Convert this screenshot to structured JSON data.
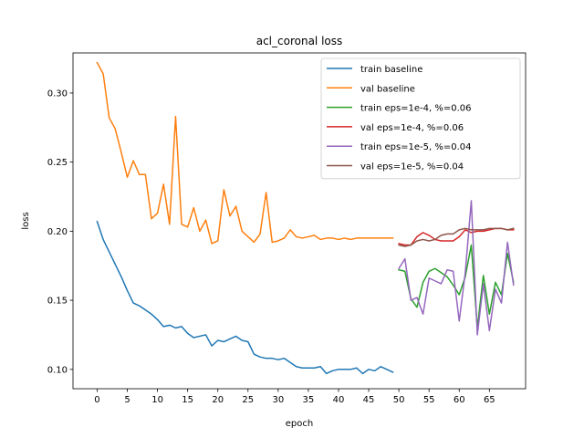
{
  "chart_data": {
    "type": "line",
    "title": "acl_coronal loss",
    "xlabel": "epoch",
    "ylabel": "loss",
    "xlim": [
      -4,
      71
    ],
    "ylim": [
      0.086,
      0.329
    ],
    "xticks": [
      0,
      5,
      10,
      15,
      20,
      25,
      30,
      35,
      40,
      45,
      50,
      55,
      60,
      65
    ],
    "yticks": [
      0.1,
      0.15,
      0.2,
      0.25,
      0.3
    ],
    "ytick_labels": [
      "0.10",
      "0.15",
      "0.20",
      "0.25",
      "0.30"
    ],
    "grid": false,
    "legend_position": "top-right",
    "series": [
      {
        "name": "train baseline",
        "color": "#1f77b4",
        "x": [
          0,
          1,
          2,
          3,
          4,
          5,
          6,
          7,
          8,
          9,
          10,
          11,
          12,
          13,
          14,
          15,
          16,
          17,
          18,
          19,
          20,
          21,
          22,
          23,
          24,
          25,
          26,
          27,
          28,
          29,
          30,
          31,
          32,
          33,
          34,
          35,
          36,
          37,
          38,
          39,
          40,
          41,
          42,
          43,
          44,
          45,
          46,
          47,
          48,
          49
        ],
        "y": [
          0.207,
          0.194,
          0.185,
          0.176,
          0.167,
          0.157,
          0.148,
          0.146,
          0.143,
          0.14,
          0.136,
          0.131,
          0.132,
          0.13,
          0.131,
          0.126,
          0.123,
          0.124,
          0.125,
          0.117,
          0.121,
          0.12,
          0.122,
          0.124,
          0.121,
          0.12,
          0.111,
          0.109,
          0.108,
          0.108,
          0.107,
          0.108,
          0.105,
          0.102,
          0.101,
          0.101,
          0.101,
          0.102,
          0.097,
          0.099,
          0.1,
          0.1,
          0.1,
          0.101,
          0.097,
          0.1,
          0.099,
          0.102,
          0.1,
          0.098
        ]
      },
      {
        "name": "val baseline",
        "color": "#ff7f0e",
        "x": [
          0,
          1,
          2,
          3,
          4,
          5,
          6,
          7,
          8,
          9,
          10,
          11,
          12,
          13,
          14,
          15,
          16,
          17,
          18,
          19,
          20,
          21,
          22,
          23,
          24,
          25,
          26,
          27,
          28,
          29,
          30,
          31,
          32,
          33,
          34,
          35,
          36,
          37,
          38,
          39,
          40,
          41,
          42,
          43,
          44,
          45,
          46,
          47,
          48,
          49
        ],
        "y": [
          0.322,
          0.314,
          0.282,
          0.274,
          0.257,
          0.239,
          0.251,
          0.241,
          0.241,
          0.209,
          0.213,
          0.234,
          0.205,
          0.283,
          0.205,
          0.203,
          0.217,
          0.2,
          0.208,
          0.191,
          0.193,
          0.23,
          0.211,
          0.218,
          0.2,
          0.196,
          0.192,
          0.198,
          0.228,
          0.192,
          0.193,
          0.195,
          0.201,
          0.196,
          0.195,
          0.196,
          0.197,
          0.194,
          0.195,
          0.195,
          0.194,
          0.195,
          0.194,
          0.195,
          0.195,
          0.195,
          0.195,
          0.195,
          0.195,
          0.195
        ]
      },
      {
        "name": "train eps=1e-4, %=0.06",
        "color": "#2ca02c",
        "x": [
          50,
          51,
          52,
          53,
          54,
          55,
          56,
          57,
          58,
          59,
          60,
          61,
          62,
          63,
          64,
          65,
          66,
          67,
          68,
          69
        ],
        "y": [
          0.172,
          0.171,
          0.151,
          0.145,
          0.163,
          0.171,
          0.173,
          0.17,
          0.167,
          0.161,
          0.154,
          0.167,
          0.19,
          0.13,
          0.168,
          0.14,
          0.163,
          0.154,
          0.184,
          0.163
        ]
      },
      {
        "name": "val eps=1e-4, %=0.06",
        "color": "#d62728",
        "x": [
          50,
          51,
          52,
          53,
          54,
          55,
          56,
          57,
          58,
          59,
          60,
          61,
          62,
          63,
          64,
          65,
          66,
          67,
          68,
          69
        ],
        "y": [
          0.191,
          0.19,
          0.19,
          0.196,
          0.199,
          0.197,
          0.194,
          0.193,
          0.193,
          0.193,
          0.196,
          0.201,
          0.199,
          0.2,
          0.2,
          0.201,
          0.202,
          0.202,
          0.201,
          0.201
        ]
      },
      {
        "name": "train eps=1e-5, %=0.04",
        "color": "#9467bd",
        "x": [
          50,
          51,
          52,
          53,
          54,
          55,
          56,
          57,
          58,
          59,
          60,
          61,
          62,
          63,
          64,
          65,
          66,
          67,
          68,
          69
        ],
        "y": [
          0.173,
          0.18,
          0.15,
          0.152,
          0.14,
          0.166,
          0.164,
          0.162,
          0.172,
          0.171,
          0.135,
          0.17,
          0.222,
          0.125,
          0.162,
          0.128,
          0.158,
          0.148,
          0.192,
          0.161
        ]
      },
      {
        "name": "val eps=1e-5, %=0.04",
        "color": "#8c564b",
        "x": [
          50,
          51,
          52,
          53,
          54,
          55,
          56,
          57,
          58,
          59,
          60,
          61,
          62,
          63,
          64,
          65,
          66,
          67,
          68,
          69
        ],
        "y": [
          0.19,
          0.189,
          0.19,
          0.193,
          0.194,
          0.193,
          0.194,
          0.197,
          0.198,
          0.198,
          0.201,
          0.202,
          0.201,
          0.201,
          0.201,
          0.202,
          0.202,
          0.202,
          0.201,
          0.202
        ]
      }
    ]
  }
}
